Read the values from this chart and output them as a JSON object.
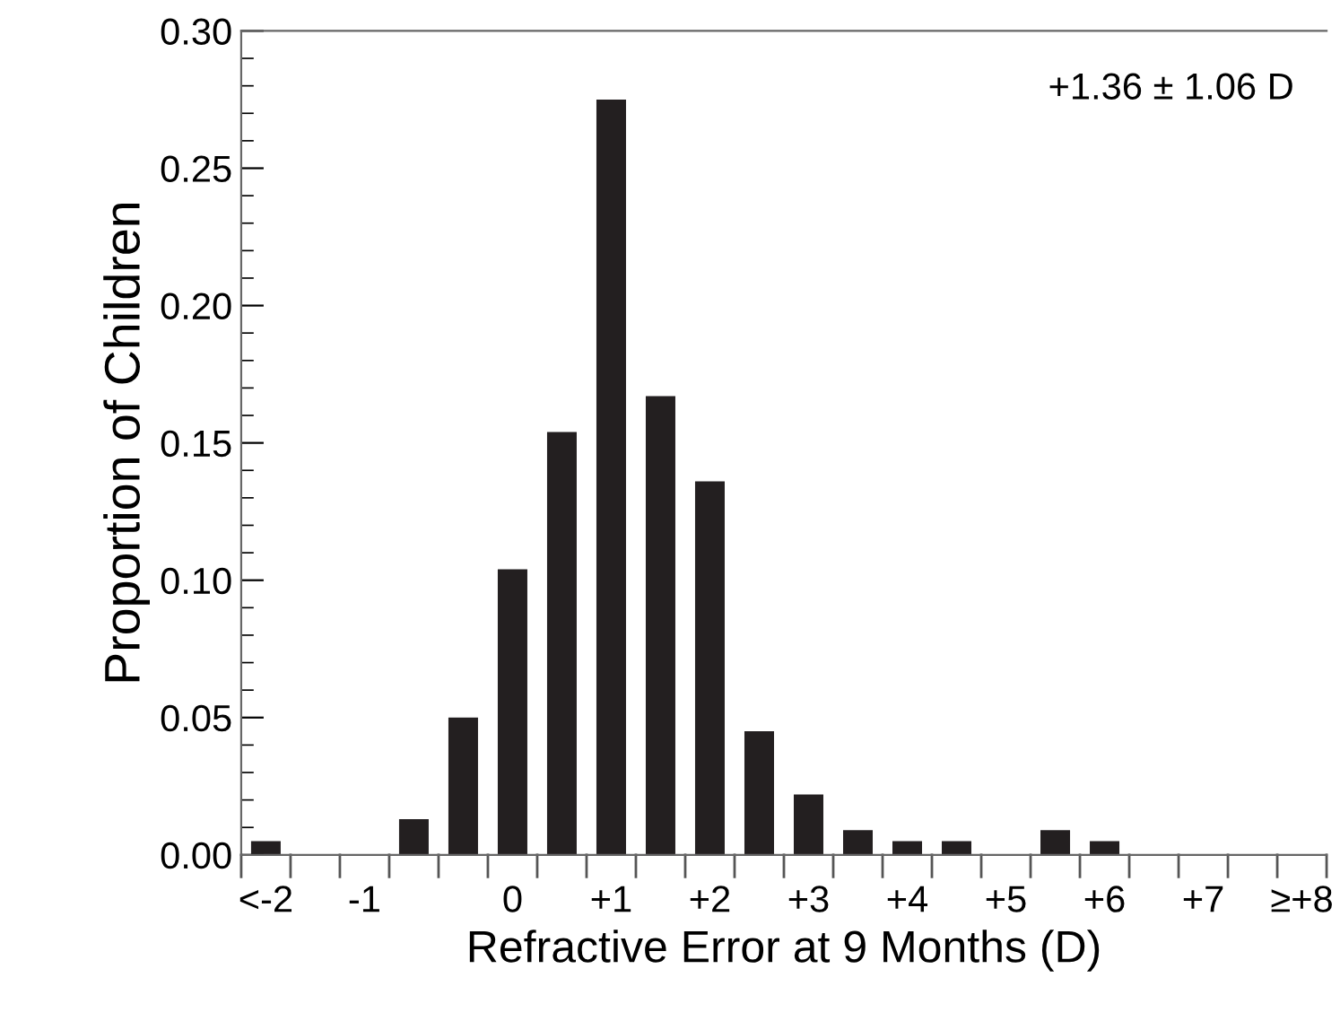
{
  "chart_data": {
    "type": "bar",
    "xlabel": "Refractive Error at 9 Months (D)",
    "ylabel": "Proportion of Children",
    "categories": [
      "<-2",
      null,
      "-1",
      null,
      null,
      "0",
      null,
      "+1",
      null,
      "+2",
      null,
      "+3",
      null,
      "+4",
      null,
      "+5",
      null,
      "+6",
      null,
      "+7",
      null,
      "≥+8"
    ],
    "values": [
      0.005,
      0,
      0,
      0.013,
      0.05,
      0.104,
      0.154,
      0.275,
      0.167,
      0.136,
      0.045,
      0.022,
      0.009,
      0.005,
      0.005,
      0,
      0.009,
      0.005,
      0,
      0,
      0,
      0
    ],
    "color": "#231f20",
    "ylim": [
      0,
      0.3
    ],
    "yticks": [
      {
        "value": 0,
        "label": "0.00"
      },
      {
        "value": 0.05,
        "label": "0.05"
      },
      {
        "value": 0.1,
        "label": "0.10"
      },
      {
        "value": 0.15,
        "label": "0.15"
      },
      {
        "value": 0.2,
        "label": "0.20"
      },
      {
        "value": 0.25,
        "label": "0.25"
      },
      {
        "value": 0.3,
        "label": "0.30"
      }
    ],
    "grid": false,
    "annotations": [
      "+1.36 ± 1.06 D"
    ]
  }
}
